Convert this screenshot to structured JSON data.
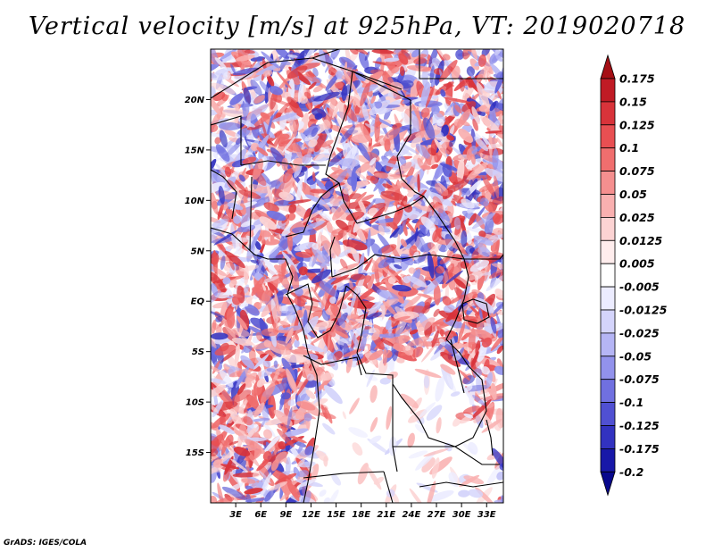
{
  "title": "Vertical velocity [m/s] at 925hPa, VT: 2019020718",
  "credit": "GrADS: IGES/COLA",
  "map": {
    "lon_range": [
      0,
      35
    ],
    "lat_range": [
      -20,
      25
    ],
    "lon_ticks": [
      {
        "value": 3,
        "label": "3E"
      },
      {
        "value": 6,
        "label": "6E"
      },
      {
        "value": 9,
        "label": "9E"
      },
      {
        "value": 12,
        "label": "12E"
      },
      {
        "value": 15,
        "label": "15E"
      },
      {
        "value": 18,
        "label": "18E"
      },
      {
        "value": 21,
        "label": "21E"
      },
      {
        "value": 24,
        "label": "24E"
      },
      {
        "value": 27,
        "label": "27E"
      },
      {
        "value": 30,
        "label": "30E"
      },
      {
        "value": 33,
        "label": "33E"
      }
    ],
    "lat_ticks": [
      {
        "value": 20,
        "label": "20N"
      },
      {
        "value": 15,
        "label": "15N"
      },
      {
        "value": 10,
        "label": "10N"
      },
      {
        "value": 5,
        "label": "5N"
      },
      {
        "value": 0,
        "label": "EQ"
      },
      {
        "value": -5,
        "label": "5S"
      },
      {
        "value": -10,
        "label": "10S"
      },
      {
        "value": -15,
        "label": "15S"
      }
    ]
  },
  "colorbar": {
    "levels": [
      "0.175",
      "0.15",
      "0.125",
      "0.1",
      "0.075",
      "0.05",
      "0.025",
      "0.0125",
      "0.005",
      "-0.005",
      "-0.0125",
      "-0.025",
      "-0.05",
      "-0.075",
      "-0.1",
      "-0.125",
      "-0.175",
      "-0.2"
    ],
    "colors": [
      "#a50f15",
      "#c01b25",
      "#d8333a",
      "#e84f52",
      "#f06e6e",
      "#f58f8f",
      "#f9b0b0",
      "#fcd3d3",
      "#ffeded",
      "#ffffff",
      "#ececff",
      "#d4d4fb",
      "#b5b5f5",
      "#9292ec",
      "#7070e0",
      "#5050d2",
      "#3232c0",
      "#1818a8",
      "#08088c"
    ]
  }
}
